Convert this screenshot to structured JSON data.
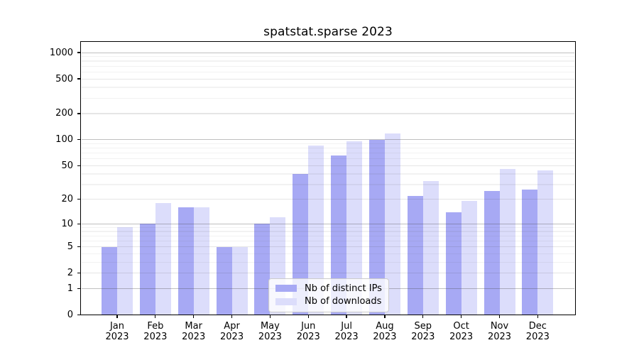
{
  "title": "spatstat.sparse 2023",
  "chart_data": {
    "type": "bar",
    "scale": "log (1-2-5 ticks with 0 baseline, log1p spacing)",
    "grid": "on",
    "legend_position": "bottom-center",
    "categories": [
      "Jan",
      "Feb",
      "Mar",
      "Apr",
      "May",
      "Jun",
      "Jul",
      "Aug",
      "Sep",
      "Oct",
      "Nov",
      "Dec"
    ],
    "category_year": "2023",
    "series": [
      {
        "name": "Nb of distinct IPs",
        "color": "#a7a9f4",
        "values": [
          5,
          10,
          16,
          5,
          10,
          40,
          65,
          100,
          22,
          14,
          25,
          26
        ]
      },
      {
        "name": "Nb of downloads",
        "color": "#dcddfb",
        "values": [
          9,
          18,
          16,
          5,
          12,
          85,
          95,
          118,
          33,
          19,
          46,
          44
        ]
      }
    ],
    "y_ticks": [
      0,
      1,
      2,
      5,
      10,
      20,
      50,
      100,
      200,
      500,
      1000
    ],
    "ylim": [
      0,
      1300
    ]
  }
}
